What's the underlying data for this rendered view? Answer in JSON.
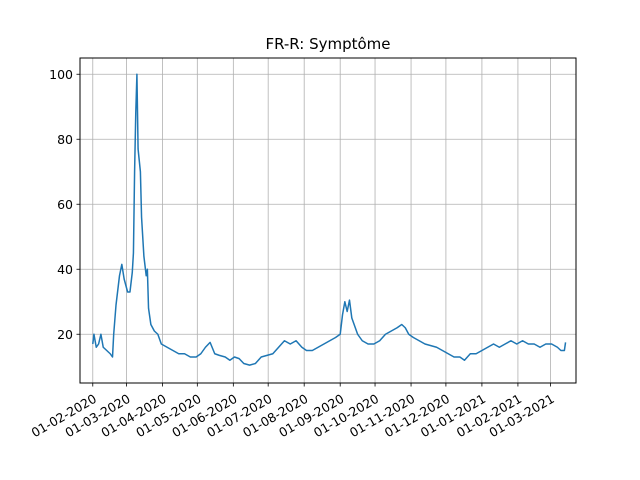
{
  "chart_data": {
    "type": "line",
    "title": "FR-R: Symptôme",
    "xlabel": "",
    "ylabel": "",
    "grid": true,
    "color": "#1f77b4",
    "x_range": [
      "2020-01-21",
      "2021-03-23"
    ],
    "ylim": [
      5,
      105
    ],
    "y_ticks": [
      20,
      40,
      60,
      80,
      100
    ],
    "x_ticks": [
      {
        "date": "2020-02-01",
        "label": "01-02-2020"
      },
      {
        "date": "2020-03-01",
        "label": "01-03-2020"
      },
      {
        "date": "2020-04-01",
        "label": "01-04-2020"
      },
      {
        "date": "2020-05-01",
        "label": "01-05-2020"
      },
      {
        "date": "2020-06-01",
        "label": "01-06-2020"
      },
      {
        "date": "2020-07-01",
        "label": "01-07-2020"
      },
      {
        "date": "2020-08-01",
        "label": "01-08-2020"
      },
      {
        "date": "2020-09-01",
        "label": "01-09-2020"
      },
      {
        "date": "2020-10-01",
        "label": "01-10-2020"
      },
      {
        "date": "2020-11-01",
        "label": "01-11-2020"
      },
      {
        "date": "2020-12-01",
        "label": "01-12-2020"
      },
      {
        "date": "2021-01-01",
        "label": "01-01-2021"
      },
      {
        "date": "2021-02-01",
        "label": "01-02-2021"
      },
      {
        "date": "2021-03-01",
        "label": "01-03-2021"
      }
    ],
    "series": [
      {
        "points": [
          [
            "2020-02-01",
            17
          ],
          [
            "2020-02-02",
            20
          ],
          [
            "2020-02-04",
            16
          ],
          [
            "2020-02-06",
            17
          ],
          [
            "2020-02-08",
            20
          ],
          [
            "2020-02-10",
            16
          ],
          [
            "2020-02-13",
            15
          ],
          [
            "2020-02-16",
            14
          ],
          [
            "2020-02-18",
            13
          ],
          [
            "2020-02-19",
            20
          ],
          [
            "2020-02-21",
            29
          ],
          [
            "2020-02-24",
            38
          ],
          [
            "2020-02-26",
            41.5
          ],
          [
            "2020-02-28",
            37
          ],
          [
            "2020-03-02",
            33
          ],
          [
            "2020-03-04",
            33
          ],
          [
            "2020-03-06",
            39
          ],
          [
            "2020-03-07",
            45
          ],
          [
            "2020-03-08",
            70
          ],
          [
            "2020-03-09",
            88
          ],
          [
            "2020-03-10",
            100
          ],
          [
            "2020-03-11",
            77
          ],
          [
            "2020-03-13",
            70
          ],
          [
            "2020-03-14",
            56
          ],
          [
            "2020-03-16",
            44
          ],
          [
            "2020-03-18",
            38
          ],
          [
            "2020-03-19",
            40
          ],
          [
            "2020-03-20",
            28
          ],
          [
            "2020-03-22",
            23
          ],
          [
            "2020-03-25",
            21
          ],
          [
            "2020-03-28",
            20
          ],
          [
            "2020-03-31",
            17
          ],
          [
            "2020-04-05",
            16
          ],
          [
            "2020-04-10",
            15
          ],
          [
            "2020-04-15",
            14
          ],
          [
            "2020-04-20",
            14
          ],
          [
            "2020-04-25",
            13
          ],
          [
            "2020-04-30",
            13
          ],
          [
            "2020-05-04",
            14
          ],
          [
            "2020-05-08",
            16
          ],
          [
            "2020-05-12",
            17.5
          ],
          [
            "2020-05-16",
            14
          ],
          [
            "2020-05-20",
            13.5
          ],
          [
            "2020-05-25",
            13
          ],
          [
            "2020-05-29",
            12
          ],
          [
            "2020-06-02",
            13
          ],
          [
            "2020-06-06",
            12.5
          ],
          [
            "2020-06-10",
            11
          ],
          [
            "2020-06-15",
            10.5
          ],
          [
            "2020-06-20",
            11
          ],
          [
            "2020-06-25",
            13
          ],
          [
            "2020-06-30",
            13.5
          ],
          [
            "2020-07-05",
            14
          ],
          [
            "2020-07-10",
            16
          ],
          [
            "2020-07-15",
            18
          ],
          [
            "2020-07-20",
            17
          ],
          [
            "2020-07-25",
            18
          ],
          [
            "2020-07-30",
            16
          ],
          [
            "2020-08-03",
            15
          ],
          [
            "2020-08-08",
            15
          ],
          [
            "2020-08-13",
            16
          ],
          [
            "2020-08-18",
            17
          ],
          [
            "2020-08-23",
            18
          ],
          [
            "2020-08-28",
            19
          ],
          [
            "2020-09-01",
            20
          ],
          [
            "2020-09-03",
            26
          ],
          [
            "2020-09-05",
            30
          ],
          [
            "2020-09-07",
            27
          ],
          [
            "2020-09-09",
            30.5
          ],
          [
            "2020-09-11",
            25
          ],
          [
            "2020-09-13",
            23
          ],
          [
            "2020-09-16",
            20
          ],
          [
            "2020-09-20",
            18
          ],
          [
            "2020-09-25",
            17
          ],
          [
            "2020-09-30",
            17
          ],
          [
            "2020-10-05",
            18
          ],
          [
            "2020-10-10",
            20
          ],
          [
            "2020-10-15",
            21
          ],
          [
            "2020-10-20",
            22
          ],
          [
            "2020-10-24",
            23
          ],
          [
            "2020-10-27",
            22
          ],
          [
            "2020-10-30",
            20
          ],
          [
            "2020-11-03",
            19
          ],
          [
            "2020-11-08",
            18
          ],
          [
            "2020-11-13",
            17
          ],
          [
            "2020-11-18",
            16.5
          ],
          [
            "2020-11-23",
            16
          ],
          [
            "2020-11-28",
            15
          ],
          [
            "2020-12-03",
            14
          ],
          [
            "2020-12-08",
            13
          ],
          [
            "2020-12-13",
            13
          ],
          [
            "2020-12-17",
            12
          ],
          [
            "2020-12-22",
            14
          ],
          [
            "2020-12-27",
            14
          ],
          [
            "2021-01-01",
            15
          ],
          [
            "2021-01-06",
            16
          ],
          [
            "2021-01-11",
            17
          ],
          [
            "2021-01-16",
            16
          ],
          [
            "2021-01-21",
            17
          ],
          [
            "2021-01-26",
            18
          ],
          [
            "2021-01-31",
            17
          ],
          [
            "2021-02-05",
            18
          ],
          [
            "2021-02-10",
            17
          ],
          [
            "2021-02-15",
            17
          ],
          [
            "2021-02-20",
            16
          ],
          [
            "2021-02-25",
            17
          ],
          [
            "2021-03-02",
            17
          ],
          [
            "2021-03-07",
            16
          ],
          [
            "2021-03-10",
            15
          ],
          [
            "2021-03-13",
            15
          ],
          [
            "2021-03-14",
            17.5
          ]
        ]
      }
    ]
  }
}
